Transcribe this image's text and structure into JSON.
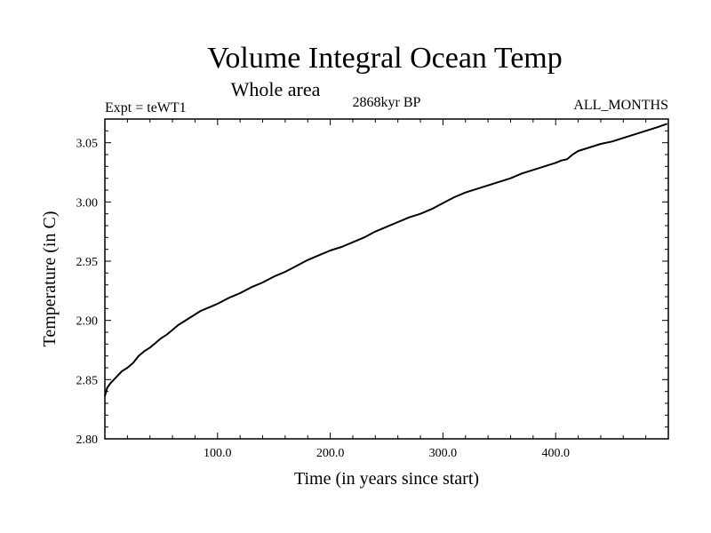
{
  "chart_data": {
    "type": "line",
    "title": "Volume Integral Ocean Temp",
    "subtitle": "Whole area",
    "experiment_label": "Expt = teWT1",
    "period_label": "2868kyr BP",
    "months_label": "ALL_MONTHS",
    "xlabel": "Time (in years since start)",
    "ylabel": "Temperature (in C)",
    "xlim": [
      0,
      500
    ],
    "ylim": [
      2.8,
      3.07
    ],
    "x_ticks": [
      {
        "value": 100,
        "label": "100.0"
      },
      {
        "value": 200,
        "label": "200.0"
      },
      {
        "value": 300,
        "label": "300.0"
      },
      {
        "value": 400,
        "label": "400.0"
      }
    ],
    "y_ticks": [
      {
        "value": 2.8,
        "label": "2.80"
      },
      {
        "value": 2.85,
        "label": "2.85"
      },
      {
        "value": 2.9,
        "label": "2.90"
      },
      {
        "value": 2.95,
        "label": "2.95"
      },
      {
        "value": 3.0,
        "label": "3.00"
      },
      {
        "value": 3.05,
        "label": "3.05"
      }
    ],
    "series": [
      {
        "name": "Volume Integral Ocean Temp",
        "color": "#000000",
        "x": [
          0,
          2,
          5,
          10,
          15,
          20,
          25,
          30,
          35,
          40,
          45,
          50,
          55,
          60,
          65,
          70,
          75,
          80,
          85,
          90,
          95,
          100,
          110,
          120,
          130,
          140,
          150,
          160,
          170,
          180,
          190,
          200,
          210,
          220,
          230,
          240,
          250,
          260,
          270,
          280,
          290,
          300,
          310,
          320,
          330,
          340,
          350,
          360,
          370,
          380,
          390,
          400,
          405,
          410,
          415,
          420,
          430,
          440,
          450,
          460,
          470,
          480,
          490,
          499
        ],
        "values": [
          2.836,
          2.843,
          2.847,
          2.852,
          2.857,
          2.86,
          2.864,
          2.87,
          2.874,
          2.877,
          2.881,
          2.885,
          2.888,
          2.892,
          2.896,
          2.899,
          2.902,
          2.905,
          2.908,
          2.91,
          2.912,
          2.914,
          2.919,
          2.923,
          2.928,
          2.932,
          2.937,
          2.941,
          2.946,
          2.951,
          2.955,
          2.959,
          2.962,
          2.966,
          2.97,
          2.975,
          2.979,
          2.983,
          2.987,
          2.99,
          2.994,
          2.999,
          3.004,
          3.008,
          3.011,
          3.014,
          3.017,
          3.02,
          3.024,
          3.027,
          3.03,
          3.033,
          3.035,
          3.036,
          3.04,
          3.043,
          3.046,
          3.049,
          3.051,
          3.054,
          3.057,
          3.06,
          3.063,
          3.066
        ]
      }
    ]
  }
}
